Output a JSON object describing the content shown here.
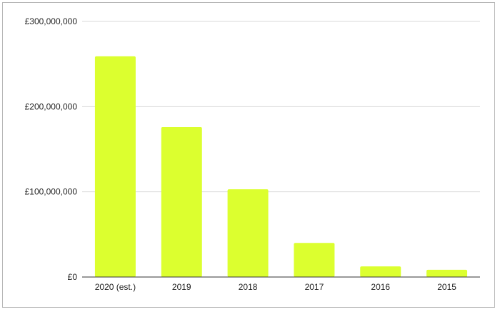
{
  "chart_data": {
    "type": "bar",
    "title": "",
    "xlabel": "",
    "ylabel": "",
    "categories": [
      "2020 (est.)",
      "2019",
      "2018",
      "2017",
      "2016",
      "2015"
    ],
    "values": [
      259000000,
      176000000,
      103000000,
      40000000,
      12500000,
      8500000
    ],
    "ylim": [
      0,
      300000000
    ],
    "yticks": [
      0,
      100000000,
      200000000,
      300000000
    ],
    "ytick_labels": [
      "£0",
      "£100,000,000",
      "£200,000,000",
      "£300,000,000"
    ],
    "grid": true,
    "legend": "none",
    "bar_color": "#dcff2f"
  }
}
